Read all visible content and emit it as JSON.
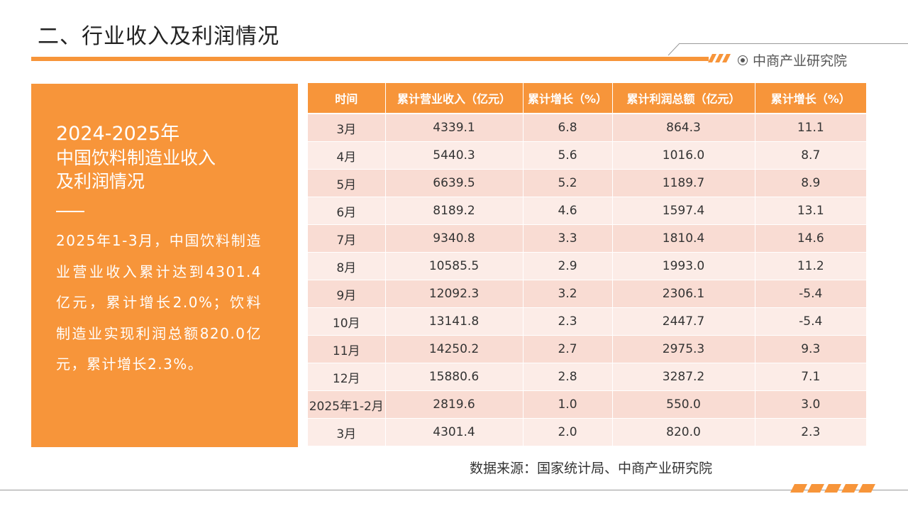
{
  "header": {
    "title": "二、行业收入及利润情况",
    "brand": "中商产业研究院",
    "brand_icon": "target-circle-icon",
    "accent_color": "#f7953a"
  },
  "left_panel": {
    "year_range": "2024-2025年",
    "subtitle_lines": [
      "中国饮料制造业收入",
      "及利润情况"
    ],
    "body": "2025年1-3月，中国饮料制造业营业收入累计达到4301.4亿元，累计增长2.0%；饮料制造业实现利润总额820.0亿元，累计增长2.3%。"
  },
  "table": {
    "columns": [
      "时间",
      "累计营业收入（亿元）",
      "累计增长（%）",
      "累计利润总额（亿元）",
      "累计增长（%）"
    ],
    "rows": [
      [
        "3月",
        "4339.1",
        "6.8",
        "864.3",
        "11.1"
      ],
      [
        "4月",
        "5440.3",
        "5.6",
        "1016.0",
        "8.7"
      ],
      [
        "5月",
        "6639.5",
        "5.2",
        "1189.7",
        "8.9"
      ],
      [
        "6月",
        "8189.2",
        "4.6",
        "1597.4",
        "13.1"
      ],
      [
        "7月",
        "9340.8",
        "3.3",
        "1810.4",
        "14.6"
      ],
      [
        "8月",
        "10585.5",
        "2.9",
        "1993.0",
        "11.2"
      ],
      [
        "9月",
        "12092.3",
        "3.2",
        "2306.1",
        "-5.4"
      ],
      [
        "10月",
        "13141.8",
        "2.3",
        "2447.7",
        "-5.4"
      ],
      [
        "11月",
        "14250.2",
        "2.7",
        "2975.3",
        "9.3"
      ],
      [
        "12月",
        "15880.6",
        "2.8",
        "3287.2",
        "7.1"
      ],
      [
        "2025年1-2月",
        "2819.6",
        "1.0",
        "550.0",
        "3.0"
      ],
      [
        "3月",
        "4301.4",
        "2.0",
        "820.0",
        "2.3"
      ]
    ]
  },
  "source": "数据来源：国家统计局、中商产业研究院"
}
